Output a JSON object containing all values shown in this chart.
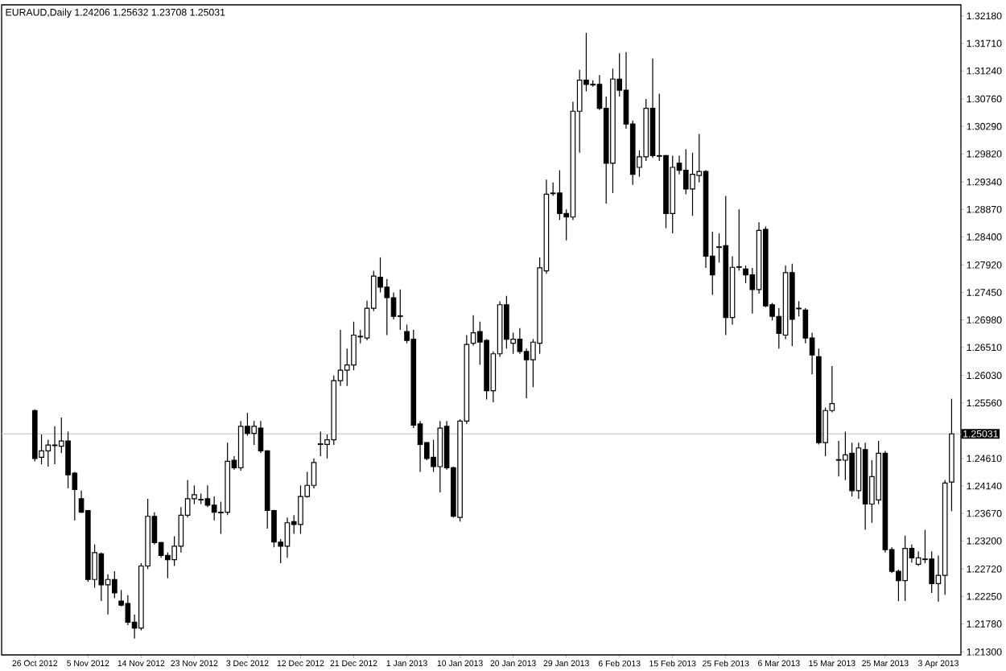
{
  "chart_data": {
    "type": "candlestick",
    "title": "EURAUD,Daily 1.24206 1.25632 1.23708 1.25031",
    "categories": [
      "26 Oct 2012",
      null,
      null,
      null,
      null,
      null,
      null,
      null,
      "5 Nov 2012",
      null,
      null,
      null,
      null,
      null,
      null,
      null,
      "14 Nov 2012",
      null,
      null,
      null,
      null,
      null,
      null,
      null,
      "23 Nov 2012",
      null,
      null,
      null,
      null,
      null,
      null,
      null,
      "3 Dec 2012",
      null,
      null,
      null,
      null,
      null,
      null,
      null,
      "12 Dec 2012",
      null,
      null,
      null,
      null,
      null,
      null,
      null,
      "21 Dec 2012",
      null,
      null,
      null,
      null,
      null,
      null,
      null,
      "1 Jan 2013",
      null,
      null,
      null,
      null,
      null,
      null,
      null,
      "10 Jan 2013",
      null,
      null,
      null,
      null,
      null,
      null,
      null,
      "20 Jan 2013",
      null,
      null,
      null,
      null,
      null,
      null,
      null,
      "29 Jan 2013",
      null,
      null,
      null,
      null,
      null,
      null,
      null,
      "6 Feb 2013",
      null,
      null,
      null,
      null,
      null,
      null,
      null,
      "15 Feb 2013",
      null,
      null,
      null,
      null,
      null,
      null,
      null,
      "25 Feb 2013",
      null,
      null,
      null,
      null,
      null,
      null,
      null,
      "6 Mar 2013",
      null,
      null,
      null,
      null,
      null,
      null,
      null,
      "15 Mar 2013",
      null,
      null,
      null,
      null,
      null,
      null,
      null,
      "25 Mar 2013",
      null,
      null,
      null,
      null,
      null,
      null,
      null,
      "3 Apr 2013",
      null,
      null
    ],
    "ohlc": [
      [
        1.2543,
        1.2545,
        1.2456,
        1.2461
      ],
      [
        1.2463,
        1.2502,
        1.2451,
        1.2474
      ],
      [
        1.2474,
        1.2493,
        1.2447,
        1.2484
      ],
      [
        1.2484,
        1.2516,
        1.2451,
        1.2483
      ],
      [
        1.2482,
        1.2531,
        1.247,
        1.2491
      ],
      [
        1.2491,
        1.2507,
        1.241,
        1.2433
      ],
      [
        1.2436,
        1.2438,
        1.2355,
        1.2408
      ],
      [
        1.2392,
        1.2406,
        1.2368,
        1.2369
      ],
      [
        1.2372,
        1.2373,
        1.225,
        1.2254
      ],
      [
        1.2254,
        1.2314,
        1.224,
        1.23
      ],
      [
        1.2298,
        1.23,
        1.2217,
        1.2245
      ],
      [
        1.2245,
        1.2263,
        1.2194,
        1.2254
      ],
      [
        1.2254,
        1.2268,
        1.2222,
        1.2231
      ],
      [
        1.2217,
        1.2236,
        1.2208,
        1.221
      ],
      [
        1.2213,
        1.2227,
        1.2176,
        1.2181
      ],
      [
        1.2181,
        1.2194,
        1.2153,
        1.2171
      ],
      [
        1.2171,
        1.2282,
        1.2167,
        1.2277
      ],
      [
        1.2277,
        1.2392,
        1.2272,
        1.2362
      ],
      [
        1.2362,
        1.2369,
        1.2314,
        1.2317
      ],
      [
        1.2317,
        1.2318,
        1.2291,
        1.2295
      ],
      [
        1.2295,
        1.23,
        1.2256,
        1.2288
      ],
      [
        1.2288,
        1.2328,
        1.2277,
        1.2311
      ],
      [
        1.2311,
        1.2378,
        1.23,
        1.2364
      ],
      [
        1.2364,
        1.2424,
        1.236,
        1.2392
      ],
      [
        1.2392,
        1.2415,
        1.2383,
        1.2399
      ],
      [
        1.239,
        1.2401,
        1.2383,
        1.2391
      ],
      [
        1.2392,
        1.2415,
        1.2378,
        1.2381
      ],
      [
        1.2381,
        1.2396,
        1.2355,
        1.2369
      ],
      [
        1.2369,
        1.2387,
        1.2332,
        1.2368
      ],
      [
        1.2369,
        1.2488,
        1.2364,
        1.2456
      ],
      [
        1.2458,
        1.2465,
        1.2442,
        1.2445
      ],
      [
        1.2445,
        1.2525,
        1.244,
        1.2516
      ],
      [
        1.2516,
        1.2539,
        1.25,
        1.2504
      ],
      [
        1.2504,
        1.2525,
        1.2484,
        1.2516
      ],
      [
        1.2513,
        1.2525,
        1.247,
        1.2474
      ],
      [
        1.2474,
        1.2475,
        1.2341,
        1.2372
      ],
      [
        1.2372,
        1.2373,
        1.2309,
        1.2318
      ],
      [
        1.2318,
        1.2323,
        1.2282,
        1.2311
      ],
      [
        1.2311,
        1.236,
        1.2291,
        1.2351
      ],
      [
        1.2353,
        1.2364,
        1.2332,
        1.2348
      ],
      [
        1.2348,
        1.2415,
        1.2332,
        1.2396
      ],
      [
        1.2396,
        1.2438,
        1.2394,
        1.2415
      ],
      [
        1.2415,
        1.2461,
        1.241,
        1.2454
      ],
      [
        1.2485,
        1.2507,
        1.2465,
        1.2486
      ],
      [
        1.2485,
        1.2502,
        1.2461,
        1.2493
      ],
      [
        1.2493,
        1.2603,
        1.2484,
        1.2594
      ],
      [
        1.2594,
        1.2681,
        1.2585,
        1.2612
      ],
      [
        1.2612,
        1.2649,
        1.2585,
        1.2621
      ],
      [
        1.2621,
        1.2695,
        1.2612,
        1.2672
      ],
      [
        1.2669,
        1.2681,
        1.2658,
        1.267
      ],
      [
        1.2667,
        1.2731,
        1.2663,
        1.2718
      ],
      [
        1.2718,
        1.2782,
        1.2713,
        1.2773
      ],
      [
        1.2771,
        1.2805,
        1.2745,
        1.2754
      ],
      [
        1.2754,
        1.2768,
        1.2672,
        1.2736
      ],
      [
        1.2736,
        1.2745,
        1.2699,
        1.2704
      ],
      [
        1.2705,
        1.275,
        1.2681,
        1.2704
      ],
      [
        1.2678,
        1.269,
        1.2658,
        1.2663
      ],
      [
        1.2665,
        1.2681,
        1.2513,
        1.2518
      ],
      [
        1.252,
        1.2525,
        1.2438,
        1.2485
      ],
      [
        1.2488,
        1.2489,
        1.2458,
        1.2461
      ],
      [
        1.2463,
        1.2493,
        1.2438,
        1.2447
      ],
      [
        1.2447,
        1.2525,
        1.2403,
        1.2513
      ],
      [
        1.2516,
        1.2525,
        1.2442,
        1.2445
      ],
      [
        1.2445,
        1.2447,
        1.236,
        1.2362
      ],
      [
        1.236,
        1.2528,
        1.2353,
        1.2525
      ],
      [
        1.2525,
        1.2672,
        1.252,
        1.2656
      ],
      [
        1.2658,
        1.2706,
        1.2654,
        1.2676
      ],
      [
        1.2678,
        1.2695,
        1.2621,
        1.266
      ],
      [
        1.2663,
        1.2665,
        1.2562,
        1.2577
      ],
      [
        1.2577,
        1.2644,
        1.2557,
        1.264
      ],
      [
        1.264,
        1.273,
        1.2635,
        1.2724
      ],
      [
        1.2724,
        1.2739,
        1.2649,
        1.2665
      ],
      [
        1.2658,
        1.2676,
        1.264,
        1.2665
      ],
      [
        1.2665,
        1.2684,
        1.264,
        1.2644
      ],
      [
        1.2644,
        1.2649,
        1.2564,
        1.263
      ],
      [
        1.263,
        1.2665,
        1.2583,
        1.266
      ],
      [
        1.2658,
        1.2805,
        1.264,
        1.2787
      ],
      [
        1.2782,
        1.2938,
        1.2777,
        1.2913
      ],
      [
        1.2915,
        1.2933,
        1.291,
        1.2914
      ],
      [
        1.2915,
        1.2954,
        1.2869,
        1.288
      ],
      [
        1.288,
        1.2887,
        1.2834,
        1.2874
      ],
      [
        1.2874,
        1.3071,
        1.2869,
        1.3055
      ],
      [
        1.3055,
        1.3126,
        1.2984,
        1.3108
      ],
      [
        1.3108,
        1.3189,
        1.3089,
        1.3101
      ],
      [
        1.3101,
        1.3108,
        1.3097,
        1.31
      ],
      [
        1.3101,
        1.3117,
        1.3057,
        1.306
      ],
      [
        1.306,
        1.308,
        1.2897,
        1.2966
      ],
      [
        1.2966,
        1.3128,
        1.2915,
        1.311
      ],
      [
        1.311,
        1.3154,
        1.308,
        1.3091
      ],
      [
        1.3091,
        1.3156,
        1.3025,
        1.3033
      ],
      [
        1.3033,
        1.3039,
        1.2929,
        1.2947
      ],
      [
        1.2959,
        1.2988,
        1.2943,
        1.2977
      ],
      [
        1.2977,
        1.3076,
        1.297,
        1.306
      ],
      [
        1.306,
        1.3145,
        1.2975,
        1.2979
      ],
      [
        1.2979,
        1.3085,
        1.297,
        1.2978
      ],
      [
        1.2979,
        1.298,
        1.2855,
        1.288
      ],
      [
        1.288,
        1.2979,
        1.2846,
        1.2959
      ],
      [
        1.2966,
        1.2979,
        1.2947,
        1.2954
      ],
      [
        1.2954,
        1.299,
        1.2913,
        1.2922
      ],
      [
        1.2922,
        1.2984,
        1.2876,
        1.2947
      ],
      [
        1.2945,
        1.3016,
        1.2933,
        1.2952
      ],
      [
        1.2952,
        1.2954,
        1.2787,
        1.2807
      ],
      [
        1.2807,
        1.2849,
        1.2741,
        1.2775
      ],
      [
        1.2823,
        1.2846,
        1.2796,
        1.2822
      ],
      [
        1.2825,
        1.291,
        1.2672,
        1.2702
      ],
      [
        1.2702,
        1.2807,
        1.269,
        1.2788
      ],
      [
        1.2788,
        1.2887,
        1.2782,
        1.2789
      ],
      [
        1.2785,
        1.2791,
        1.2761,
        1.2775
      ],
      [
        1.2775,
        1.2787,
        1.2709,
        1.275
      ],
      [
        1.275,
        1.2865,
        1.2743,
        1.2851
      ],
      [
        1.2853,
        1.2858,
        1.272,
        1.2722
      ],
      [
        1.2724,
        1.2727,
        1.2697,
        1.2704
      ],
      [
        1.2704,
        1.2718,
        1.2649,
        1.2675
      ],
      [
        1.2672,
        1.2791,
        1.2665,
        1.2779
      ],
      [
        1.2779,
        1.2794,
        1.2653,
        1.2699
      ],
      [
        1.2718,
        1.273,
        1.2704,
        1.2717
      ],
      [
        1.2715,
        1.2718,
        1.2658,
        1.2667
      ],
      [
        1.2667,
        1.2676,
        1.2605,
        1.2638
      ],
      [
        1.2635,
        1.2649,
        1.2485,
        1.2488
      ],
      [
        1.2488,
        1.2548,
        1.2465,
        1.2543
      ],
      [
        1.2543,
        1.2619,
        1.254,
        1.2555
      ],
      [
        1.2458,
        1.2491,
        1.243,
        1.2459
      ],
      [
        1.2458,
        1.2507,
        1.2424,
        1.2467
      ],
      [
        1.247,
        1.2488,
        1.2396,
        1.2406
      ],
      [
        1.2406,
        1.2488,
        1.2392,
        1.2479
      ],
      [
        1.2476,
        1.2488,
        1.2339,
        1.2383
      ],
      [
        1.2383,
        1.2458,
        1.2351,
        1.243
      ],
      [
        1.239,
        1.2491,
        1.2383,
        1.247
      ],
      [
        1.247,
        1.2474,
        1.23,
        1.2305
      ],
      [
        1.2305,
        1.2309,
        1.2265,
        1.2268
      ],
      [
        1.2268,
        1.2271,
        1.2217,
        1.2252
      ],
      [
        1.2252,
        1.2329,
        1.2217,
        1.2307
      ],
      [
        1.2307,
        1.2314,
        1.2283,
        1.2291
      ],
      [
        1.228,
        1.2302,
        1.2277,
        1.2291
      ],
      [
        1.2289,
        1.2339,
        1.2282,
        1.2288
      ],
      [
        1.2289,
        1.2302,
        1.2231,
        1.2247
      ],
      [
        1.2247,
        1.2295,
        1.2216,
        1.2261
      ],
      [
        1.2261,
        1.2424,
        1.2228,
        1.2419
      ],
      [
        1.24206,
        1.25632,
        1.23708,
        1.25031
      ]
    ],
    "ylim": [
      1.2125,
      1.3237
    ],
    "yticks": [
      {
        "value": 1.3218,
        "label": "1.32180"
      },
      {
        "value": 1.3171,
        "label": "1.31710"
      },
      {
        "value": 1.3124,
        "label": "1.31240"
      },
      {
        "value": 1.3076,
        "label": "1.30760"
      },
      {
        "value": 1.3029,
        "label": "1.30290"
      },
      {
        "value": 1.2982,
        "label": "1.29820"
      },
      {
        "value": 1.2934,
        "label": "1.29340"
      },
      {
        "value": 1.2887,
        "label": "1.28870"
      },
      {
        "value": 1.284,
        "label": "1.28400"
      },
      {
        "value": 1.2792,
        "label": "1.27920"
      },
      {
        "value": 1.2745,
        "label": "1.27450"
      },
      {
        "value": 1.2698,
        "label": "1.26980"
      },
      {
        "value": 1.2651,
        "label": "1.26510"
      },
      {
        "value": 1.2603,
        "label": "1.26030"
      },
      {
        "value": 1.2556,
        "label": "1.25560"
      },
      {
        "value": 1.2461,
        "label": "1.24610"
      },
      {
        "value": 1.2414,
        "label": "1.24140"
      },
      {
        "value": 1.2367,
        "label": "1.23670"
      },
      {
        "value": 1.232,
        "label": "1.23200"
      },
      {
        "value": 1.2272,
        "label": "1.22720"
      },
      {
        "value": 1.2225,
        "label": "1.22250"
      },
      {
        "value": 1.2178,
        "label": "1.21780"
      },
      {
        "value": 1.213,
        "label": "1.21300"
      }
    ],
    "ref_lines": [
      {
        "axis": "y",
        "value": 1.25031,
        "label": "1.25031",
        "color": "#c0c0c0"
      }
    ]
  }
}
